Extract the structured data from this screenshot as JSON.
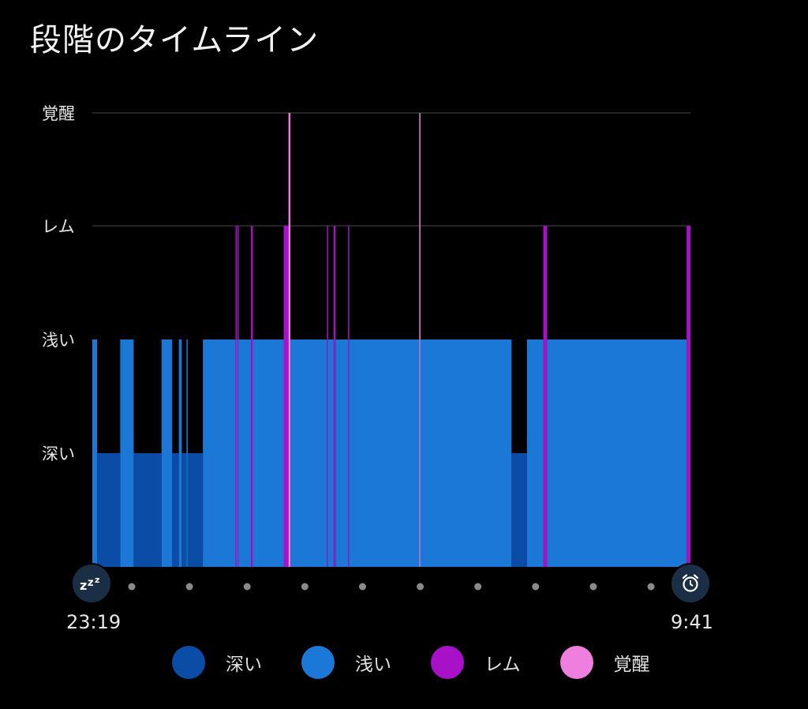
{
  "title": "段階のタイムライン",
  "start_time": "23:19",
  "end_time": "9:41",
  "icons": {
    "start": "sleep-zzz-icon",
    "end": "alarm-clock-icon"
  },
  "chart_data": {
    "type": "bar",
    "stages": [
      "深い",
      "浅い",
      "レム",
      "覚醒"
    ],
    "colors": {
      "深い": "#0a4ca6",
      "浅い": "#1b78d6",
      "レム": "#a811c8",
      "覚醒": "#ee7fde"
    },
    "x_range": [
      "23:19",
      "9:41"
    ],
    "segments": [
      {
        "start": "23:19",
        "end": "23:24",
        "stage": "浅い"
      },
      {
        "start": "23:24",
        "end": "23:48",
        "stage": "深い"
      },
      {
        "start": "23:48",
        "end": "00:02",
        "stage": "浅い"
      },
      {
        "start": "00:02",
        "end": "00:31",
        "stage": "深い"
      },
      {
        "start": "00:31",
        "end": "00:42",
        "stage": "浅い"
      },
      {
        "start": "00:42",
        "end": "00:49",
        "stage": "深い"
      },
      {
        "start": "00:49",
        "end": "00:52",
        "stage": "浅い"
      },
      {
        "start": "00:52",
        "end": "00:57",
        "stage": "深い"
      },
      {
        "start": "00:57",
        "end": "00:58",
        "stage": "浅い"
      },
      {
        "start": "00:58",
        "end": "01:14",
        "stage": "深い"
      },
      {
        "start": "01:14",
        "end": "01:48",
        "stage": "浅い"
      },
      {
        "start": "01:48",
        "end": "01:49",
        "stage": "レム"
      },
      {
        "start": "01:49",
        "end": "01:50",
        "stage": "浅い"
      },
      {
        "start": "01:50",
        "end": "01:51",
        "stage": "レム"
      },
      {
        "start": "01:51",
        "end": "02:04",
        "stage": "浅い"
      },
      {
        "start": "02:04",
        "end": "02:06",
        "stage": "レム"
      },
      {
        "start": "02:06",
        "end": "02:38",
        "stage": "浅い"
      },
      {
        "start": "02:38",
        "end": "02:43",
        "stage": "レム"
      },
      {
        "start": "02:43",
        "end": "02:45",
        "stage": "覚醒"
      },
      {
        "start": "02:45",
        "end": "03:23",
        "stage": "浅い"
      },
      {
        "start": "03:23",
        "end": "03:24",
        "stage": "レム"
      },
      {
        "start": "03:24",
        "end": "03:30",
        "stage": "浅い"
      },
      {
        "start": "03:30",
        "end": "03:32",
        "stage": "レム"
      },
      {
        "start": "03:32",
        "end": "03:45",
        "stage": "浅い"
      },
      {
        "start": "03:45",
        "end": "03:46",
        "stage": "レム"
      },
      {
        "start": "03:46",
        "end": "04:59",
        "stage": "浅い"
      },
      {
        "start": "04:59",
        "end": "05:00",
        "stage": "覚醒"
      },
      {
        "start": "05:00",
        "end": "06:35",
        "stage": "浅い"
      },
      {
        "start": "06:35",
        "end": "06:51",
        "stage": "深い"
      },
      {
        "start": "06:51",
        "end": "07:08",
        "stage": "浅い"
      },
      {
        "start": "07:08",
        "end": "07:12",
        "stage": "レム"
      },
      {
        "start": "07:12",
        "end": "09:37",
        "stage": "浅い"
      },
      {
        "start": "09:37",
        "end": "09:41",
        "stage": "レム"
      }
    ]
  },
  "legend": [
    {
      "label": "深い",
      "color": "#0a4ca6"
    },
    {
      "label": "浅い",
      "color": "#1b78d6"
    },
    {
      "label": "レム",
      "color": "#a811c8"
    },
    {
      "label": "覚醒",
      "color": "#ee7fde"
    }
  ]
}
